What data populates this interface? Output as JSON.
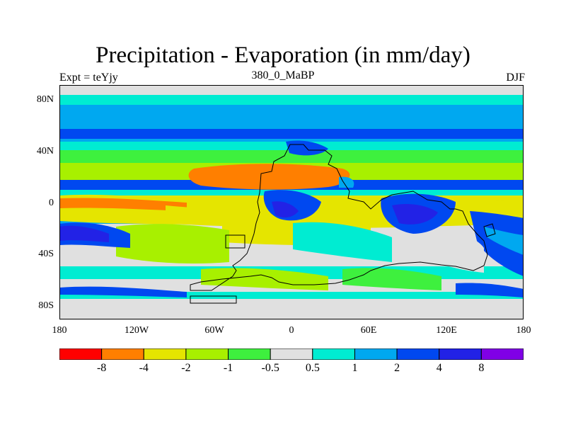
{
  "title": "Precipitation - Evaporation (in mm/day)",
  "left_label": "Expt = teYjy",
  "center_label": "380_0_MaBP",
  "right_label": "DJF",
  "y_ticks": [
    "80N",
    "40N",
    "0",
    "40S",
    "80S"
  ],
  "x_ticks": [
    "180",
    "120W",
    "60W",
    "0",
    "60E",
    "120E",
    "180"
  ],
  "colorbar": {
    "colors": [
      "#ff0000",
      "#ff7f00",
      "#e5e500",
      "#a8f000",
      "#3ef03e",
      "#e0e0e0",
      "#00ecd2",
      "#00a8f0",
      "#0048f0",
      "#2222e6",
      "#8000e6"
    ],
    "labels": [
      "-8",
      "-4",
      "-2",
      "-1",
      "-0.5",
      "0.5",
      "1",
      "2",
      "4",
      "8"
    ]
  }
}
